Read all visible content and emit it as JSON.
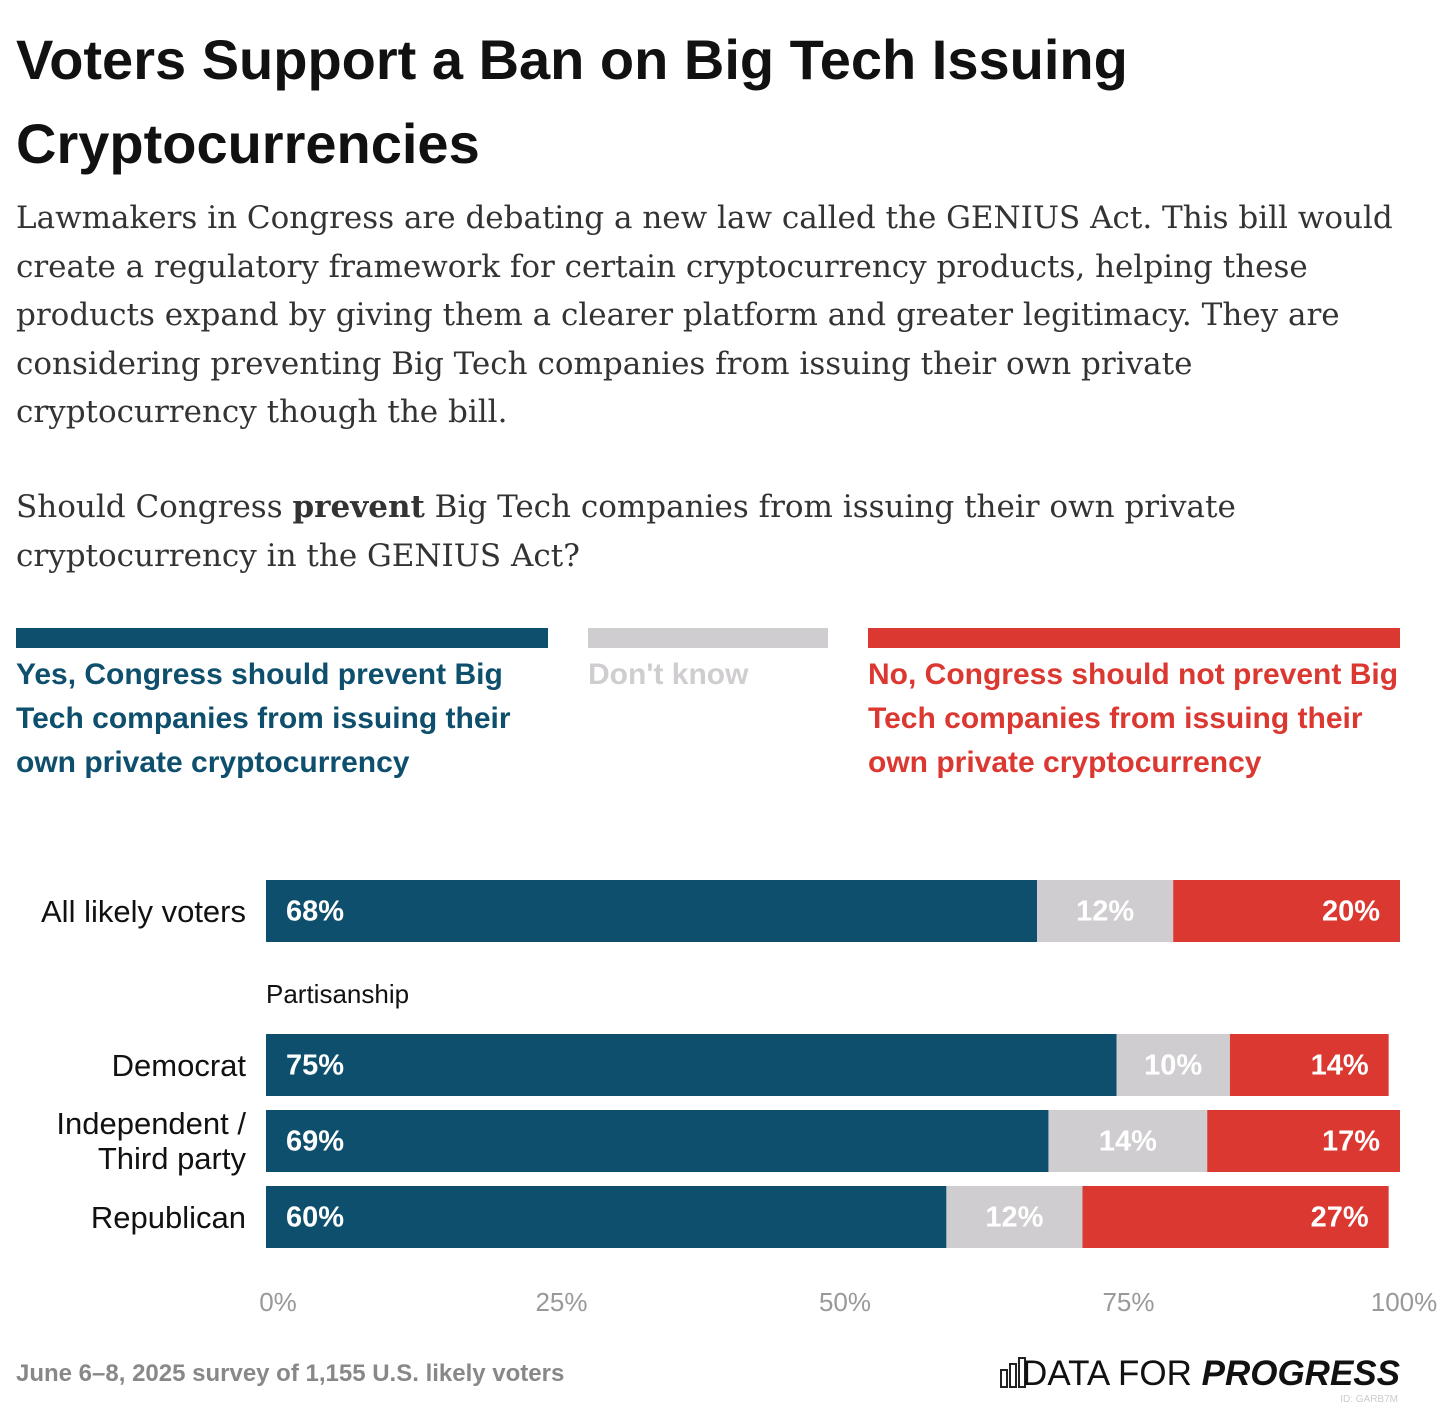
{
  "chart_data": {
    "type": "stacked-bar",
    "title": "Voters Support a Ban on Big Tech Issuing Cryptocurrencies",
    "subtitle": "Lawmakers in Congress are debating a new law called the GENIUS Act. This bill would create a regulatory framework for certain cryptocurrency products, helping these products expand by giving them a clearer platform and greater legitimacy. They are considering preventing Big Tech companies from issuing their own private cryptocurrency though the bill.",
    "question": {
      "before": "Should Congress",
      "bold": "prevent",
      "after": "Big Tech companies from issuing their own private cryptocurrency in the GENIUS Act?"
    },
    "categories": [
      "All likely voters",
      "Democrat",
      "Independent / Third party",
      "Republican"
    ],
    "group_label": "Partisanship",
    "series": [
      {
        "name": "Yes, Congress should prevent Big Tech companies from issuing their own private cryptocurrency",
        "color": "#0d4f6c",
        "values": [
          68,
          75,
          69,
          60
        ],
        "value_labels": [
          "68%",
          "75%",
          "69%",
          "60%"
        ]
      },
      {
        "name": "Don't know",
        "color": "#d0cdd0",
        "values": [
          12,
          10,
          14,
          12
        ],
        "value_labels": [
          "12%",
          "10%",
          "14%",
          "12%"
        ]
      },
      {
        "name": "No, Congress should not prevent Big Tech companies from issuing their own private cryptocurrency",
        "color": "#dc3832",
        "values": [
          20,
          14,
          17,
          27
        ],
        "value_labels": [
          "20%",
          "14%",
          "17%",
          "27%"
        ]
      }
    ],
    "xlim": [
      0,
      100
    ],
    "xticks": [
      {
        "value": 0,
        "label": "0%"
      },
      {
        "value": 25,
        "label": "25%"
      },
      {
        "value": 50,
        "label": "50%"
      },
      {
        "value": 75,
        "label": "75%"
      },
      {
        "value": 100,
        "label": "100%"
      }
    ],
    "source": "June 6–8, 2025 survey of 1,155 U.S. likely voters",
    "brand": {
      "light": "DATA FOR",
      "bold": "PROGRESS"
    },
    "chart_id": "ID: GARB7M"
  }
}
